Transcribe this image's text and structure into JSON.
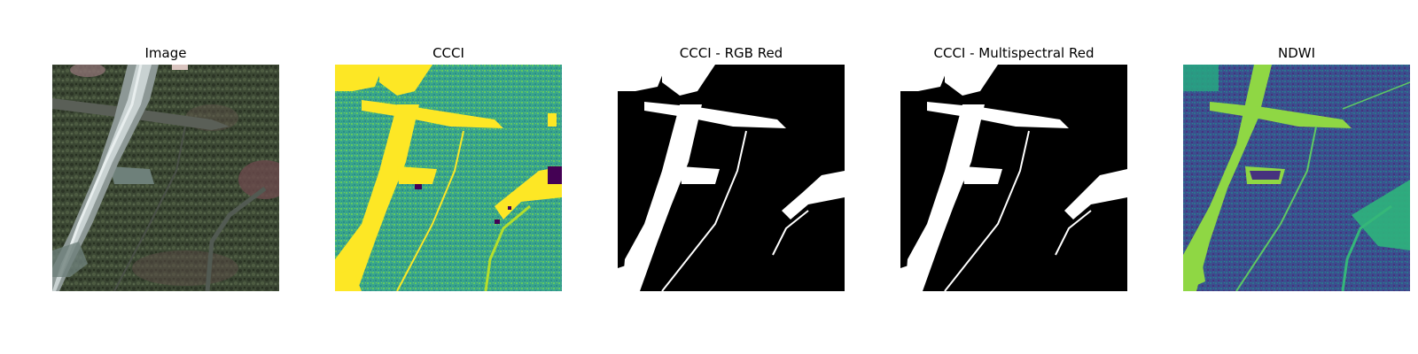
{
  "panels": [
    {
      "title": "Image"
    },
    {
      "title": "CCCI"
    },
    {
      "title": "CCCI - RGB Red"
    },
    {
      "title": "CCCI - Multispectral Red"
    },
    {
      "title": "NDWI"
    }
  ],
  "colors": {
    "background": "#ffffff",
    "mask_water": "#ffffff",
    "mask_land": "#000000",
    "viridis_low": "#440154",
    "viridis_mid": "#3aa58c",
    "viridis_high": "#fde725",
    "ndwi_low": "#3b4f8e",
    "ndwi_high": "#8fd744",
    "rgb_forest": "#3b4733",
    "rgb_water": "#6e807a",
    "rgb_riverbed": "#c9d2d2"
  }
}
